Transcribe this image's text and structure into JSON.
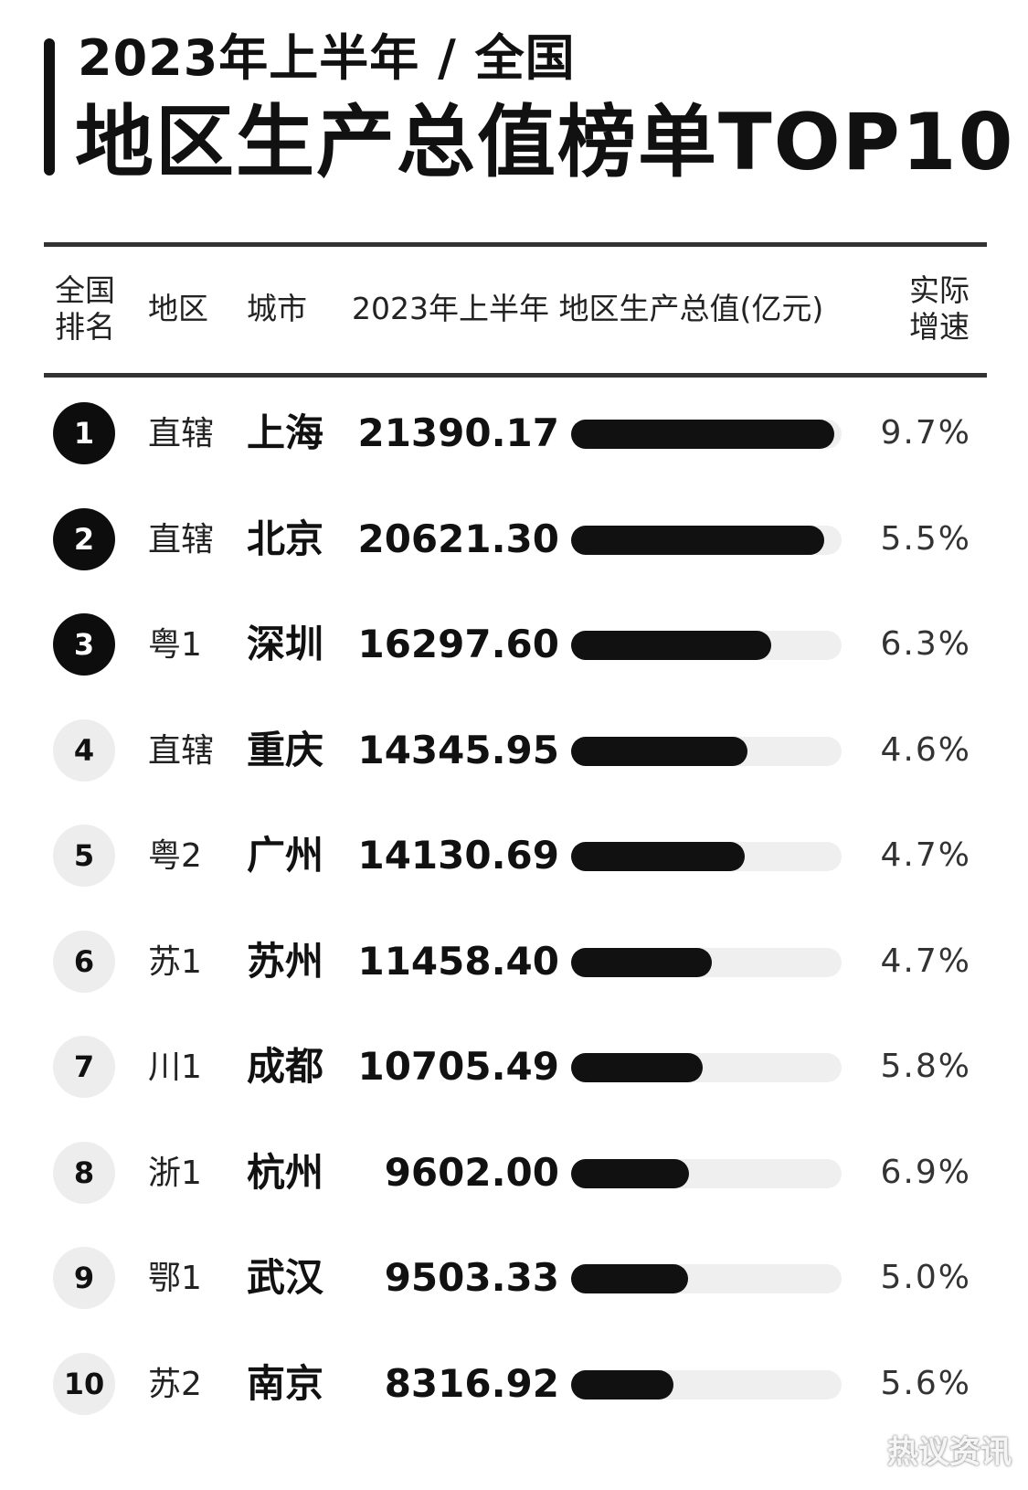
{
  "header": {
    "title_line1": "2023年上半年 / 全国",
    "title_line2": "地区生产总值榜单TOP10"
  },
  "columns": {
    "rank_line1": "全国",
    "rank_line2": "排名",
    "region": "地区",
    "city": "城市",
    "gdp": "2023年上半年 地区生产总值(亿元)",
    "growth_line1": "实际",
    "growth_line2": "增速"
  },
  "chart_data": {
    "type": "bar",
    "title": "地区生产总值榜单TOP10",
    "ylabel": "2023年上半年 地区生产总值(亿元)",
    "categories": [
      "上海",
      "北京",
      "深圳",
      "重庆",
      "广州",
      "苏州",
      "成都",
      "杭州",
      "武汉",
      "南京"
    ],
    "values": [
      21390.17,
      20621.3,
      16297.6,
      14345.95,
      14130.69,
      11458.4,
      10705.49,
      9602.0,
      9503.33,
      8316.92
    ],
    "ylim": [
      0,
      22000
    ],
    "rows": [
      {
        "rank": "1",
        "region": "直辖",
        "city": "上海",
        "gdp": "21390.17",
        "value": 21390.17,
        "growth": "9.7%"
      },
      {
        "rank": "2",
        "region": "直辖",
        "city": "北京",
        "gdp": "20621.30",
        "value": 20621.3,
        "growth": "5.5%"
      },
      {
        "rank": "3",
        "region": "粤1",
        "city": "深圳",
        "gdp": "16297.60",
        "value": 16297.6,
        "growth": "6.3%"
      },
      {
        "rank": "4",
        "region": "直辖",
        "city": "重庆",
        "gdp": "14345.95",
        "value": 14345.95,
        "growth": "4.6%"
      },
      {
        "rank": "5",
        "region": "粤2",
        "city": "广州",
        "gdp": "14130.69",
        "value": 14130.69,
        "growth": "4.7%"
      },
      {
        "rank": "6",
        "region": "苏1",
        "city": "苏州",
        "gdp": "11458.40",
        "value": 11458.4,
        "growth": "4.7%"
      },
      {
        "rank": "7",
        "region": "川1",
        "city": "成都",
        "gdp": "10705.49",
        "value": 10705.49,
        "growth": "5.8%"
      },
      {
        "rank": "8",
        "region": "浙1",
        "city": "杭州",
        "gdp": "9602.00",
        "value": 9602.0,
        "growth": "6.9%"
      },
      {
        "rank": "9",
        "region": "鄂1",
        "city": "武汉",
        "gdp": "9503.33",
        "value": 9503.33,
        "growth": "5.0%"
      },
      {
        "rank": "10",
        "region": "苏2",
        "city": "南京",
        "gdp": "8316.92",
        "value": 8316.92,
        "growth": "5.6%"
      }
    ]
  },
  "colors": {
    "bar_fill": "#111111",
    "bar_track": "#efefef",
    "top_rank_circle": "#0d0d0d",
    "rank_circle": "#ededed"
  },
  "watermark": "热议资讯"
}
